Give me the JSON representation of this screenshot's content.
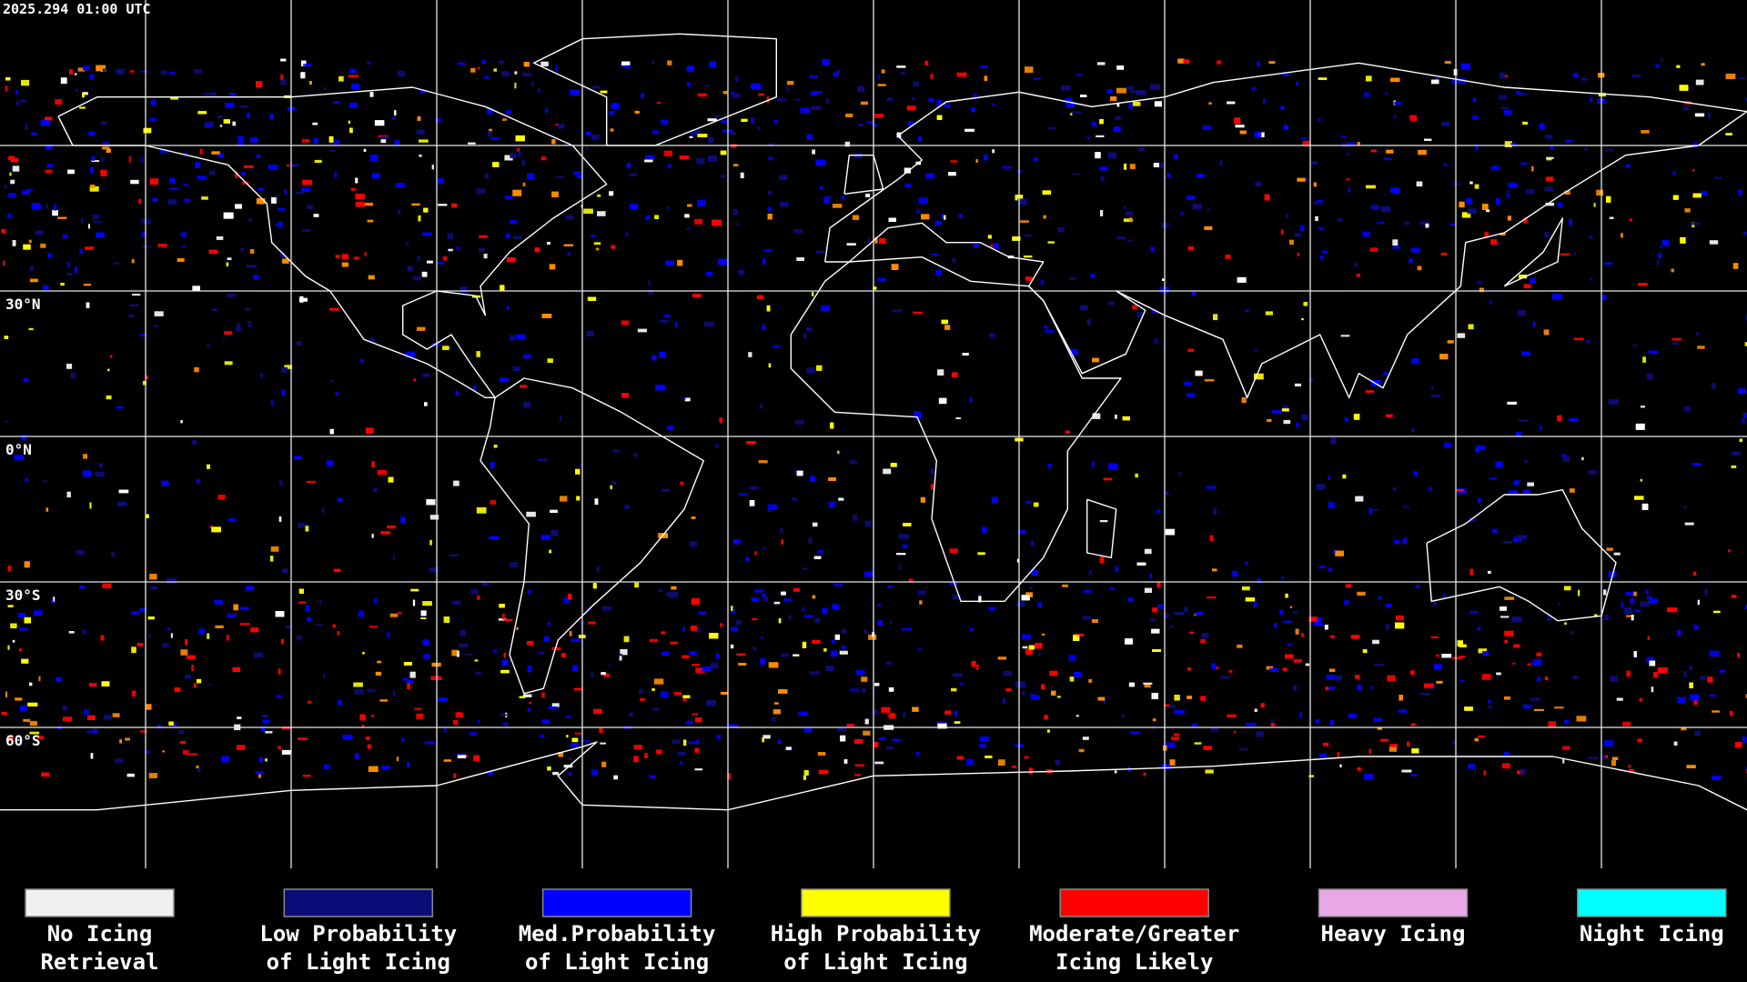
{
  "header": {
    "timestamp": "2025.294 01:00 UTC"
  },
  "map": {
    "latitude_labels": [
      "30°N",
      "0°N",
      "30°S",
      "60°S"
    ]
  },
  "legend": [
    {
      "color": "#f0f0f0",
      "lines": [
        "No Icing",
        "Retrieval"
      ]
    },
    {
      "color": "#0c0c78",
      "lines": [
        "Low Probability",
        "of Light Icing"
      ]
    },
    {
      "color": "#0000ff",
      "lines": [
        "Med.Probability",
        "of Light Icing"
      ]
    },
    {
      "color": "#ffff00",
      "lines": [
        "High Probability",
        "of Light Icing"
      ]
    },
    {
      "color": "#ff0000",
      "lines": [
        "Moderate/Greater",
        "Icing Likely"
      ]
    },
    {
      "color": "#e8a8e8",
      "lines": [
        "Heavy Icing"
      ]
    },
    {
      "color": "#00ffff",
      "lines": [
        "Night Icing"
      ]
    }
  ]
}
